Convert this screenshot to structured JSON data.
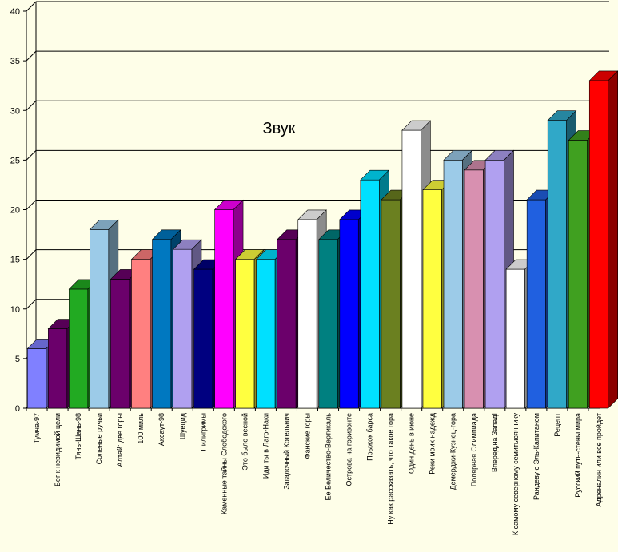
{
  "chart_data": {
    "type": "bar",
    "title": "Звук",
    "xlabel": "",
    "ylabel": "",
    "ylim": [
      0,
      40
    ],
    "yticks": [
      "0",
      "5",
      "10",
      "15",
      "20",
      "25",
      "30",
      "35",
      "40"
    ],
    "grid": true,
    "legend": "none",
    "categories": [
      "Тумча-97",
      "Бег к невидимой цели",
      "Тянь-Шань-98",
      "Соленые ручьи",
      "Алтай: две горы",
      "100 миль",
      "Аксаут-98",
      "Шуецид",
      "Пилигримы",
      "Каменные тайны Слободского",
      "Это было весной",
      "Иди ты в Лаго-Наки",
      "Загадочный Котельнич",
      "Фанские горы",
      "Ее Величество-Вертикаль",
      "Острова на горизонте",
      "Прыжок барса",
      "Ну как рассказать, что такое гора",
      "Один день в июне",
      "Реки моих надежд",
      "Демерджи-Кузнец-гора",
      "Полярная Олимпиада",
      "Вперед,на Запад!",
      "К самому северному семитысячнику",
      "Рандеву с Эль-Капитаном",
      "Рецепт",
      "Русский путь-стены мира",
      "Адреналин или все пройдет"
    ],
    "values": [
      6,
      8,
      12,
      18,
      13,
      15,
      17,
      16,
      14,
      20,
      15,
      15,
      17,
      19,
      17,
      19,
      23,
      21,
      28,
      22,
      25,
      24,
      25,
      14,
      21,
      29,
      27,
      33
    ],
    "colors": [
      "#8080ff",
      "#6b006b",
      "#22aa22",
      "#9ccbe8",
      "#6b006b",
      "#ff8080",
      "#0078c0",
      "#b0a0f0",
      "#000080",
      "#ff00ff",
      "#ffff40",
      "#00e0ff",
      "#6b006b",
      "#ffffff",
      "#008080",
      "#0000ff",
      "#00e0ff",
      "#6b8020",
      "#ffffff",
      "#ffff40",
      "#9ccbe8",
      "#d890b0",
      "#b0a0f0",
      "#ffffff",
      "#2060e0",
      "#30a8c8",
      "#40a020",
      "#ff0000"
    ]
  }
}
